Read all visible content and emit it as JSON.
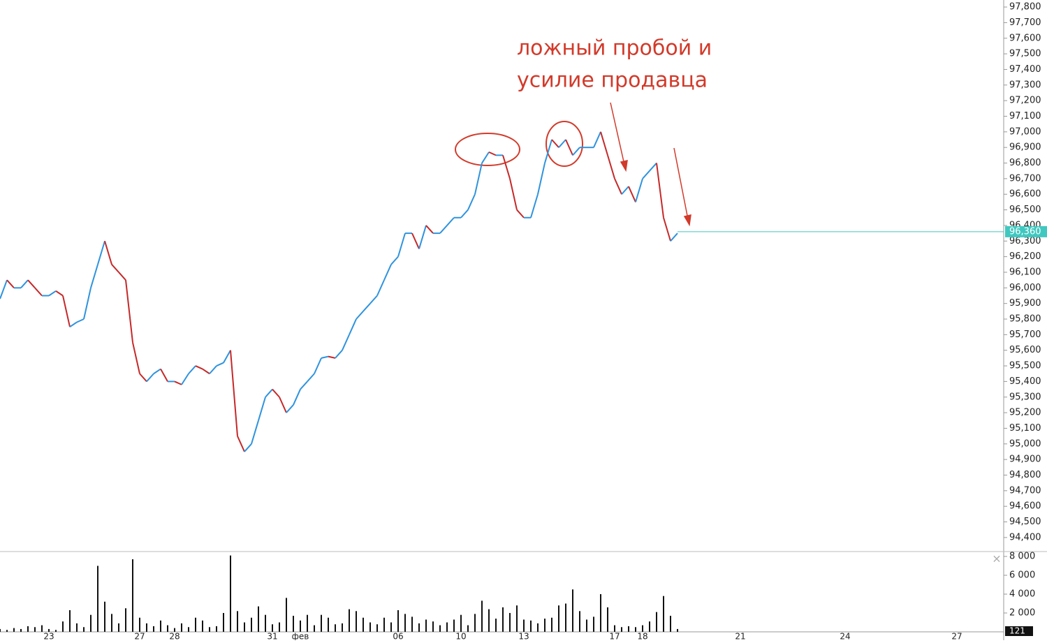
{
  "chart_data": {
    "type": "line",
    "annotations": [
      "ложный пробой и",
      "усилие продавца"
    ],
    "categories": [
      null,
      null,
      null,
      null,
      null,
      null,
      null,
      "23",
      null,
      null,
      null,
      null,
      null,
      null,
      null,
      null,
      null,
      null,
      null,
      null,
      "27",
      null,
      null,
      null,
      null,
      "28",
      null,
      null,
      null,
      null,
      null,
      null,
      null,
      null,
      null,
      null,
      null,
      null,
      null,
      "31",
      null,
      null,
      null,
      "фев",
      null,
      null,
      null,
      null,
      null,
      null,
      null,
      null,
      null,
      null,
      null,
      null,
      null,
      "06",
      null,
      null,
      null,
      null,
      null,
      null,
      null,
      null,
      "10",
      null,
      null,
      null,
      null,
      null,
      null,
      null,
      null,
      "13",
      null,
      null,
      null,
      null,
      null,
      null,
      null,
      null,
      null,
      null,
      null,
      null,
      "17",
      null,
      null,
      null,
      "18",
      null,
      null,
      null,
      null,
      null,
      null,
      null,
      null,
      null,
      null,
      null,
      null,
      null,
      "21",
      null,
      null,
      null,
      null,
      null,
      null,
      null,
      null,
      null,
      null,
      null,
      null,
      null,
      null,
      "24",
      null,
      null,
      null,
      null,
      null,
      null,
      null,
      null,
      null,
      null,
      null,
      null,
      null,
      null,
      null,
      "27",
      null,
      null,
      null,
      null,
      null,
      null
    ],
    "series": [
      {
        "name": "price",
        "up_color": "#2e93dd",
        "down_color": "#c62828",
        "values": [
          95930,
          96050,
          96000,
          96000,
          96050,
          96000,
          95950,
          95950,
          95980,
          95950,
          95750,
          95780,
          95800,
          96000,
          96150,
          96300,
          96150,
          96100,
          96050,
          95650,
          95450,
          95400,
          95450,
          95480,
          95400,
          95400,
          95380,
          95450,
          95500,
          95480,
          95450,
          95500,
          95520,
          95600,
          95050,
          94950,
          95000,
          95150,
          95300,
          95350,
          95300,
          95200,
          95250,
          95350,
          95400,
          95450,
          95550,
          95560,
          95550,
          95600,
          95700,
          95800,
          95850,
          95900,
          95950,
          96050,
          96150,
          96200,
          96350,
          96350,
          96250,
          96400,
          96350,
          96350,
          96400,
          96450,
          96450,
          96500,
          96600,
          96800,
          96870,
          96850,
          96850,
          96700,
          96500,
          96450,
          96450,
          96600,
          96800,
          96950,
          96900,
          96950,
          96850,
          96900,
          96900,
          96900,
          97000,
          96850,
          96700,
          96600,
          96650,
          96550,
          96700,
          96750,
          96800,
          96450,
          96300,
          96350,
          null,
          null,
          null,
          null,
          null,
          null,
          null,
          null,
          null,
          null,
          null,
          null,
          null,
          null,
          null,
          null,
          null,
          null,
          null,
          null,
          null,
          null,
          null,
          null,
          null,
          null,
          null,
          null,
          null,
          null,
          null,
          null,
          null,
          null,
          null,
          null,
          null,
          null,
          null,
          null,
          null,
          null,
          null,
          null,
          null,
          null
        ]
      },
      {
        "name": "volume",
        "axis": "y2",
        "color": "#111111",
        "values": [
          300,
          200,
          400,
          300,
          600,
          500,
          700,
          300,
          200,
          1100,
          2300,
          900,
          500,
          1800,
          7000,
          3200,
          1900,
          900,
          2500,
          7700,
          1500,
          900,
          600,
          1200,
          700,
          400,
          900,
          500,
          1500,
          1200,
          500,
          600,
          2000,
          8100,
          2200,
          1000,
          1500,
          2700,
          1800,
          800,
          1000,
          3600,
          1700,
          1200,
          1800,
          700,
          1800,
          1500,
          800,
          900,
          2400,
          2200,
          1500,
          1000,
          800,
          1500,
          1000,
          2300,
          1900,
          1600,
          900,
          1300,
          1100,
          700,
          1000,
          1300,
          1800,
          700,
          1900,
          3300,
          2400,
          1400,
          2600,
          2000,
          2800,
          1300,
          1200,
          900,
          1400,
          1500,
          2800,
          3000,
          4500,
          2200,
          1300,
          1600,
          4000,
          2600,
          700,
          500,
          600,
          500,
          700,
          1100,
          2100,
          3800,
          1700,
          300,
          null,
          null,
          null,
          null,
          null,
          null,
          null,
          null,
          null,
          null,
          null,
          null,
          null,
          null,
          null,
          null,
          null,
          null,
          null,
          null,
          null,
          null,
          null,
          null,
          null,
          null,
          null,
          null,
          null,
          null,
          null,
          null,
          null,
          null,
          null,
          null,
          null,
          null,
          null,
          null,
          null,
          null,
          null,
          null,
          null,
          null
        ]
      }
    ],
    "ylim": [
      94310,
      97845
    ],
    "yticks": [
      {
        "value": 94400,
        "label": "94,400"
      },
      {
        "value": 94500,
        "label": "94,500"
      },
      {
        "value": 94600,
        "label": "94,600"
      },
      {
        "value": 94700,
        "label": "94,700"
      },
      {
        "value": 94800,
        "label": "94,800"
      },
      {
        "value": 94900,
        "label": "94,900"
      },
      {
        "value": 95000,
        "label": "95,000"
      },
      {
        "value": 95100,
        "label": "95,100"
      },
      {
        "value": 95200,
        "label": "95,200"
      },
      {
        "value": 95300,
        "label": "95,300"
      },
      {
        "value": 95400,
        "label": "95,400"
      },
      {
        "value": 95500,
        "label": "95,500"
      },
      {
        "value": 95600,
        "label": "95,600"
      },
      {
        "value": 95700,
        "label": "95,700"
      },
      {
        "value": 95800,
        "label": "95,800"
      },
      {
        "value": 95900,
        "label": "95,900"
      },
      {
        "value": 96000,
        "label": "96,000"
      },
      {
        "value": 96100,
        "label": "96,100"
      },
      {
        "value": 96200,
        "label": "96,200"
      },
      {
        "value": 96300,
        "label": "96,300"
      },
      {
        "value": 96400,
        "label": "96,400"
      },
      {
        "value": 96500,
        "label": "96,500"
      },
      {
        "value": 96600,
        "label": "96,600"
      },
      {
        "value": 96700,
        "label": "96,700"
      },
      {
        "value": 96800,
        "label": "96,800"
      },
      {
        "value": 96900,
        "label": "96,900"
      },
      {
        "value": 97000,
        "label": "97,000"
      },
      {
        "value": 97100,
        "label": "97,100"
      },
      {
        "value": 97200,
        "label": "97,200"
      },
      {
        "value": 97300,
        "label": "97,300"
      },
      {
        "value": 97400,
        "label": "97,400"
      },
      {
        "value": 97500,
        "label": "97,500"
      },
      {
        "value": 97600,
        "label": "97,600"
      },
      {
        "value": 97700,
        "label": "97,700"
      },
      {
        "value": 97800,
        "label": "97,800"
      }
    ],
    "y2lim": [
      0,
      8370
    ],
    "y2ticks": [
      {
        "value": 2000,
        "label": "2 000"
      },
      {
        "value": 4000,
        "label": "4 000"
      },
      {
        "value": 6000,
        "label": "6 000"
      },
      {
        "value": 8000,
        "label": "8 000"
      }
    ],
    "last_price": {
      "value": 96360,
      "label": "96,360",
      "color": "#40c8c0"
    },
    "last_volume": 121
  }
}
